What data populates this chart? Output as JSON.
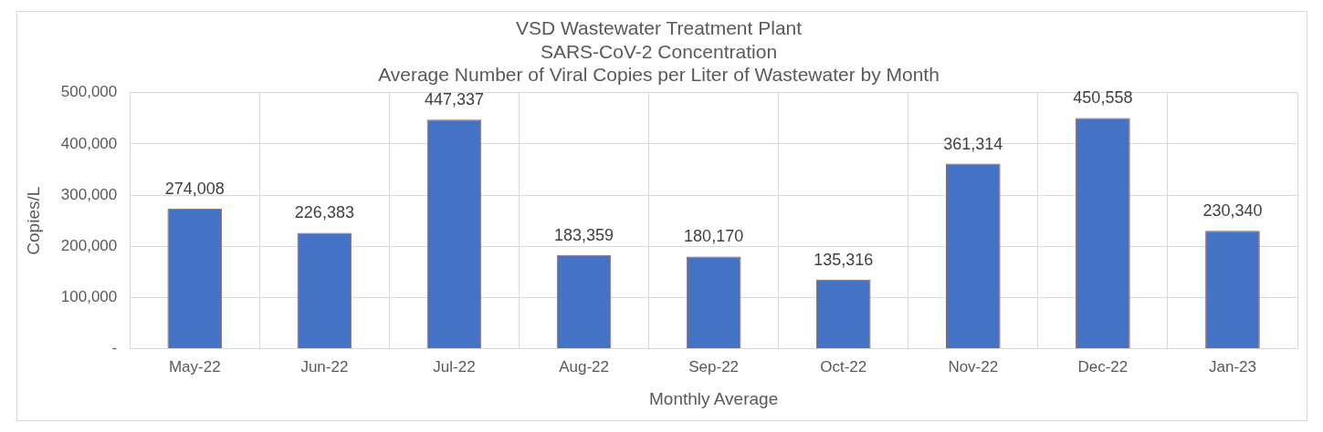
{
  "chart_data": {
    "type": "bar",
    "title": "VSD Wastewater Treatment Plant\nSARS-CoV-2 Concentration\nAverage Number of Viral Copies per Liter of Wastewater by Month",
    "categories": [
      "May-22",
      "Jun-22",
      "Jul-22",
      "Aug-22",
      "Sep-22",
      "Oct-22",
      "Nov-22",
      "Dec-22",
      "Jan-23"
    ],
    "values": [
      274008,
      226383,
      447337,
      183359,
      180170,
      135316,
      361314,
      450558,
      230340
    ],
    "color": "#4472c4",
    "xlabel": "Monthly Average",
    "ylabel": "Copies/L",
    "ylim": [
      0,
      500000
    ],
    "yticks": [
      {
        "value": 0,
        "label": "-"
      },
      {
        "value": 100000,
        "label": "100,000"
      },
      {
        "value": 200000,
        "label": "200,000"
      },
      {
        "value": 300000,
        "label": "300,000"
      },
      {
        "value": 400000,
        "label": "400,000"
      },
      {
        "value": 500000,
        "label": "500,000"
      }
    ],
    "value_labels": [
      "274,008",
      "226,383",
      "447,337",
      "183,359",
      "180,170",
      "135,316",
      "361,314",
      "450,558",
      "230,340"
    ],
    "grid": true
  }
}
